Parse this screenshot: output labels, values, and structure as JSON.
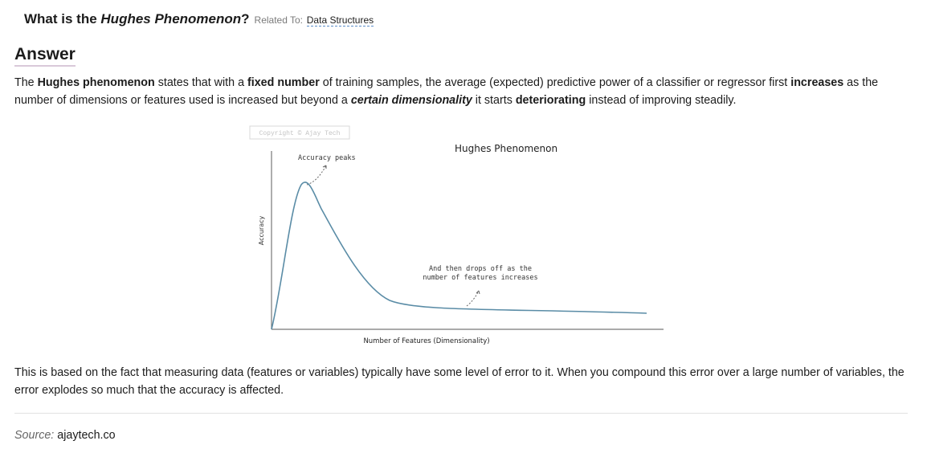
{
  "question": {
    "prefix": "What is the ",
    "term": "Hughes Phenomenon",
    "suffix": "?",
    "related_label": "Related To:",
    "related_link": "Data Structures"
  },
  "answer_heading": "Answer",
  "paragraph1": {
    "s1": "The ",
    "b1": "Hughes phenomenon",
    "s2": " states that with a ",
    "b2": "fixed number",
    "s3": " of training samples, the average (expected) predictive power of a classifier or regressor first ",
    "b3": "increases",
    "s4": " as the number of dimensions or features used is increased but beyond a ",
    "bi1": "certain dimensionality",
    "s5": " it starts ",
    "b4": "deteriorating",
    "s6": " instead of improving steadily."
  },
  "figure": {
    "watermark": "Copyright © Ajay Tech",
    "title": "Hughes Phenomenon",
    "ylabel": "Accuracy",
    "xlabel": "Number of Features (Dimensionality)",
    "annotation_peak": "Accuracy peaks",
    "annotation_drop_line1": "And then drops off as the",
    "annotation_drop_line2": "number of features increases",
    "curve_color": "#5a8ca6"
  },
  "paragraph2": "This is based on the fact that measuring data (features or variables) typically have some level of error to it. When you compound this error over a large number of variables, the error explodes so much that the accuracy is affected.",
  "source": {
    "label": "Source:",
    "value": "ajaytech.co"
  }
}
